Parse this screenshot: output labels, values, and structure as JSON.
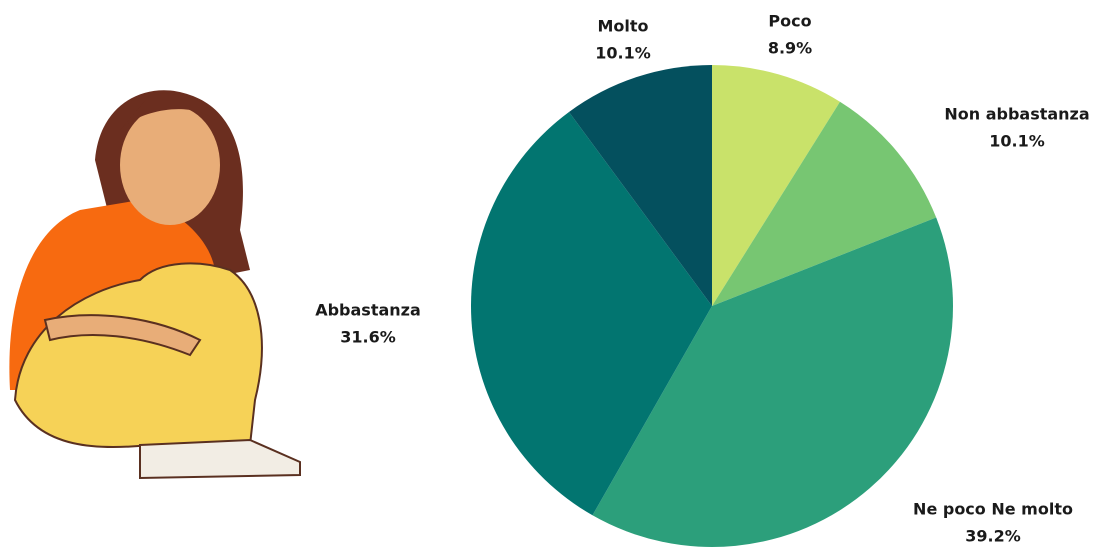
{
  "chart_data": {
    "type": "pie",
    "categories": [
      "Poco",
      "Non abbastanza",
      "Ne poco Ne molto",
      "Abbastanza",
      "Molto"
    ],
    "values": [
      8.9,
      10.1,
      39.2,
      31.6,
      10.1
    ],
    "value_labels": [
      "8.9%",
      "10.1%",
      "39.2%",
      "31.6%",
      "10.1%"
    ],
    "colors": [
      "#c9e26a",
      "#77c672",
      "#2c9f7b",
      "#027570",
      "#04505e"
    ]
  }
}
